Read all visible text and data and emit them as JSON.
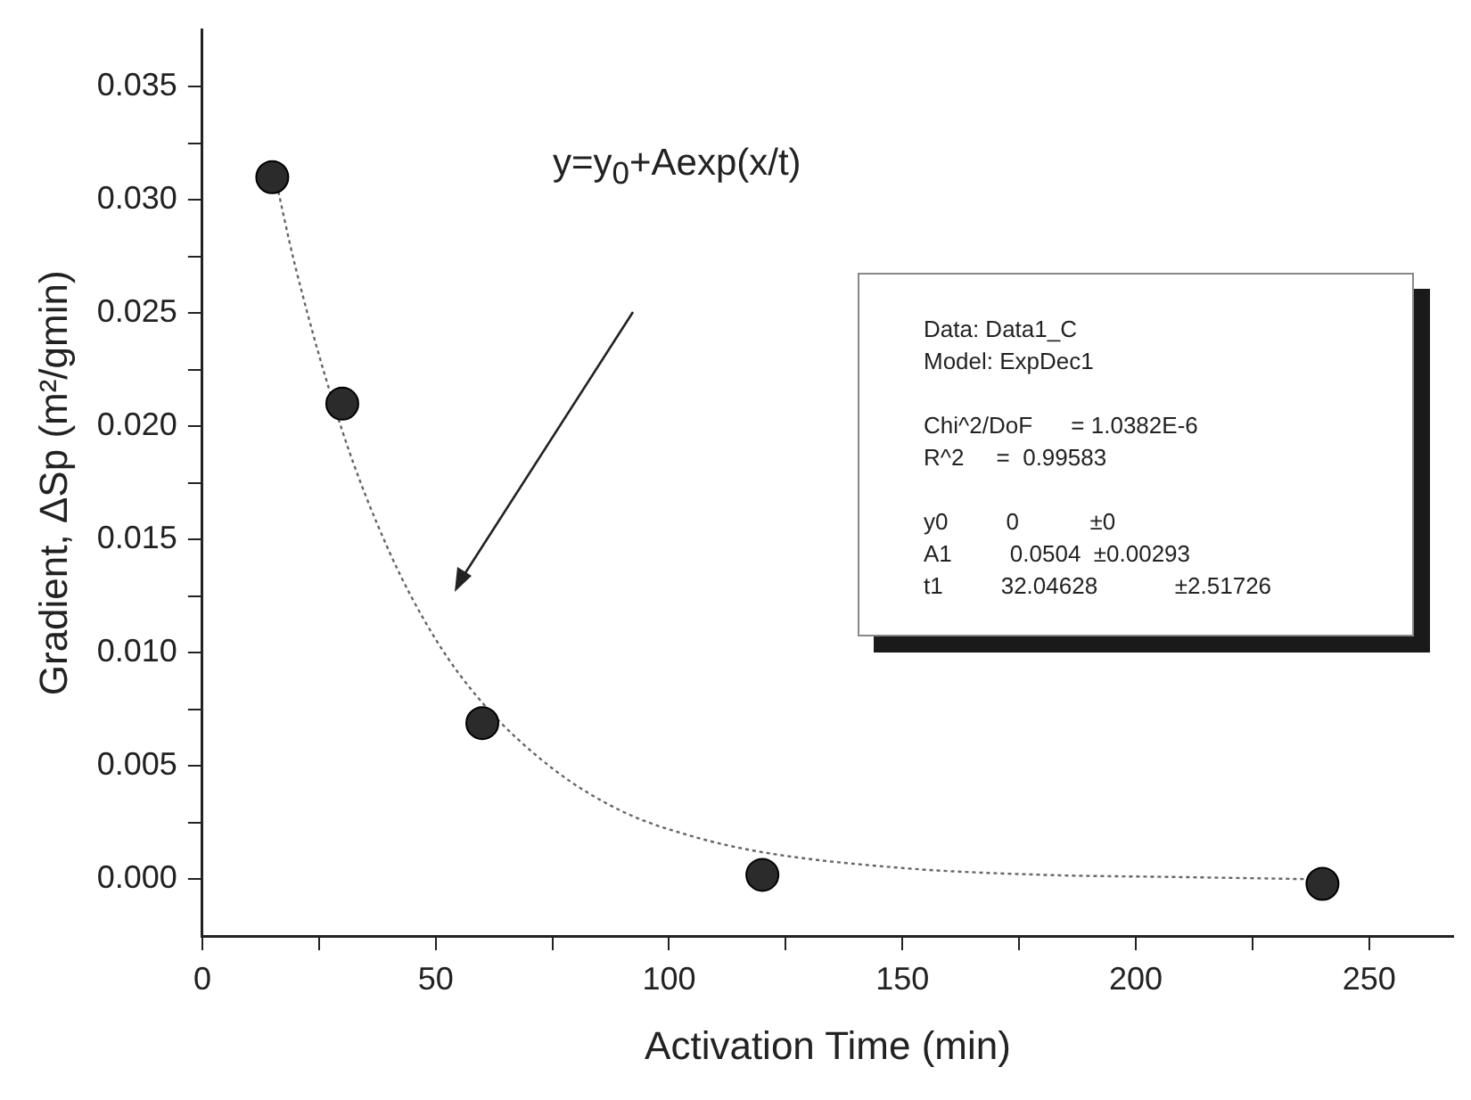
{
  "chart_data": {
    "type": "scatter",
    "xlabel": "Activation Time (min)",
    "ylabel": "Gradient, ΔSp (m²/gmin)",
    "x": [
      15,
      30,
      60,
      120,
      240
    ],
    "series": [
      {
        "color": "#2b2b2b",
        "values": [
          0.031,
          0.021,
          0.0069,
          0.0002,
          -0.0002
        ],
        "marker": "circle"
      },
      {
        "type": "line",
        "color": "#666666",
        "x": [
          15,
          20,
          30,
          40,
          50,
          60,
          75,
          90,
          105,
          120,
          150,
          180,
          210,
          240
        ],
        "values": [
          0.0316,
          0.027,
          0.0198,
          0.0145,
          0.0106,
          0.0078,
          0.0049,
          0.003,
          0.0019,
          0.0012,
          0.0005,
          0.0002,
          0.0001,
          0.0
        ],
        "marker": "none",
        "line_style": "dotted"
      }
    ],
    "xlim": [
      0,
      268
    ],
    "ylim": [
      -0.0025,
      0.0375
    ],
    "xticks": [
      0,
      {
        "value": 25,
        "label": null
      },
      50,
      {
        "value": 75,
        "label": null
      },
      100,
      {
        "value": 125,
        "label": null
      },
      150,
      {
        "value": 175,
        "label": null
      },
      200,
      {
        "value": 225,
        "label": null
      },
      250
    ],
    "yticks": [
      {
        "value": 0,
        "label": "0.000"
      },
      {
        "value": 0.0025,
        "label": null
      },
      {
        "value": 0.005,
        "label": "0.005"
      },
      {
        "value": 0.0075,
        "label": null
      },
      {
        "value": 0.01,
        "label": "0.010"
      },
      {
        "value": 0.0125,
        "label": null
      },
      {
        "value": 0.015,
        "label": "0.015"
      },
      {
        "value": 0.0175,
        "label": null
      },
      {
        "value": 0.02,
        "label": "0.020"
      },
      {
        "value": 0.0225,
        "label": null
      },
      {
        "value": 0.025,
        "label": "0.025"
      },
      {
        "value": 0.0275,
        "label": null
      },
      {
        "value": 0.03,
        "label": "0.030"
      },
      {
        "value": 0.0325,
        "label": null
      },
      {
        "value": 0.035,
        "label": "0.035"
      }
    ],
    "grid": false,
    "legend": false,
    "annotations": [
      "y=y$_{0}$+Aexp(x/t)",
      "Data: Data1_C",
      "Model: ExpDec1",
      "Chi^2/DoF      = 1.0382E-6",
      "R^2     =  0.99583",
      "y0         0           ±0",
      "A1         0.0504  ±0.00293",
      "t1         32.04628            ±2.51726"
    ]
  }
}
